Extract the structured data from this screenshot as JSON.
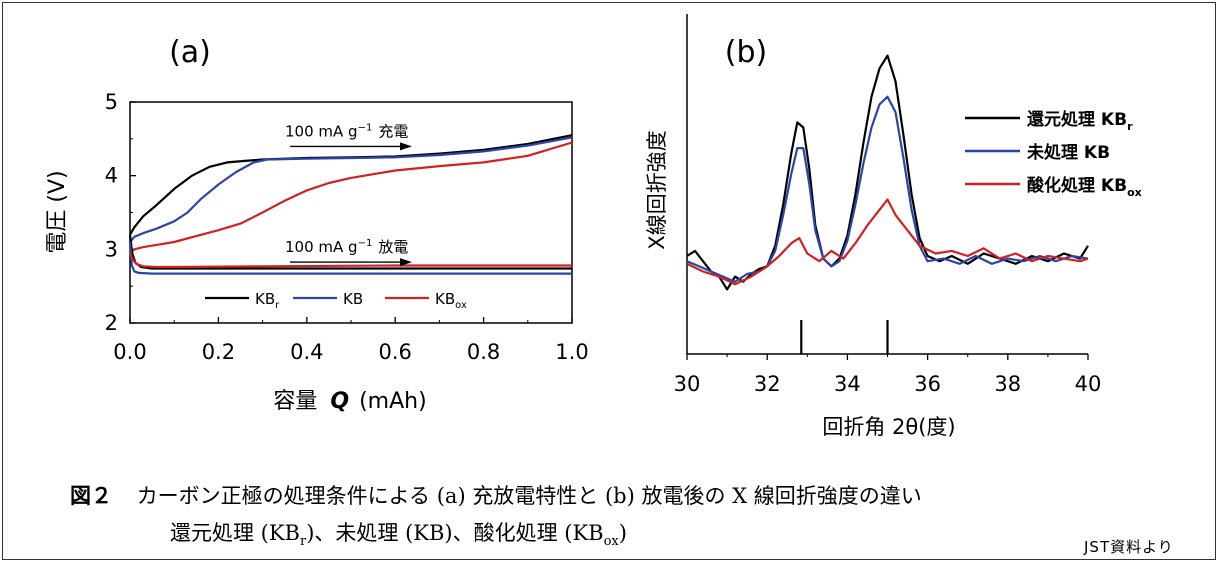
{
  "chart_data": [
    {
      "type": "line",
      "panel_label": "(a)",
      "xlabel": "容量",
      "xlabel_var": "Q",
      "xlabel_unit": "(mAh)",
      "ylabel": "電圧 (V)",
      "xlim": [
        0.0,
        1.0
      ],
      "ylim": [
        2,
        5
      ],
      "xticks": [
        "0.0",
        "0.2",
        "0.4",
        "0.6",
        "0.8",
        "1.0"
      ],
      "yticks": [
        "2",
        "3",
        "4",
        "5"
      ],
      "annotations": [
        {
          "text_prefix": "100 mA g",
          "superscript": "−1",
          "text_suffix": "充電",
          "y": 4.37
        },
        {
          "text_prefix": "100 mA g",
          "superscript": "−1",
          "text_suffix": "放電",
          "y": 2.8
        }
      ],
      "legend": [
        {
          "label": "KB",
          "subscript": "r",
          "color": "#000000"
        },
        {
          "label": "KB",
          "subscript": "",
          "color": "#2a45a8"
        },
        {
          "label": "KB",
          "subscript": "ox",
          "color": "#d42020"
        }
      ],
      "series": [
        {
          "name": "KBr charge",
          "color": "#000000",
          "x": [
            0.0,
            0.01,
            0.03,
            0.06,
            0.1,
            0.14,
            0.18,
            0.22,
            0.26,
            0.3,
            0.4,
            0.5,
            0.6,
            0.7,
            0.8,
            0.9,
            1.0
          ],
          "y": [
            3.2,
            3.3,
            3.45,
            3.6,
            3.82,
            4.0,
            4.12,
            4.18,
            4.2,
            4.22,
            4.24,
            4.25,
            4.26,
            4.3,
            4.35,
            4.43,
            4.55
          ]
        },
        {
          "name": "KB charge",
          "color": "#2a45a8",
          "x": [
            0.0,
            0.01,
            0.03,
            0.06,
            0.1,
            0.13,
            0.16,
            0.2,
            0.24,
            0.28,
            0.31,
            0.4,
            0.5,
            0.6,
            0.7,
            0.8,
            0.9,
            1.0
          ],
          "y": [
            3.1,
            3.17,
            3.22,
            3.28,
            3.38,
            3.5,
            3.68,
            3.88,
            4.05,
            4.18,
            4.22,
            4.23,
            4.24,
            4.25,
            4.28,
            4.33,
            4.41,
            4.52
          ]
        },
        {
          "name": "KBox charge",
          "color": "#d42020",
          "x": [
            0.0,
            0.01,
            0.03,
            0.06,
            0.1,
            0.15,
            0.2,
            0.25,
            0.3,
            0.35,
            0.4,
            0.45,
            0.5,
            0.55,
            0.6,
            0.7,
            0.8,
            0.9,
            1.0
          ],
          "y": [
            2.95,
            3.0,
            3.03,
            3.06,
            3.1,
            3.18,
            3.26,
            3.35,
            3.5,
            3.66,
            3.8,
            3.9,
            3.97,
            4.02,
            4.07,
            4.13,
            4.18,
            4.27,
            4.45
          ]
        },
        {
          "name": "KBr discharge",
          "color": "#000000",
          "x": [
            0.0,
            0.005,
            0.012,
            0.025,
            0.05,
            0.1,
            0.3,
            0.6,
            1.0
          ],
          "y": [
            3.2,
            2.95,
            2.82,
            2.76,
            2.74,
            2.74,
            2.74,
            2.74,
            2.74
          ]
        },
        {
          "name": "KB discharge",
          "color": "#2a45a8",
          "x": [
            0.0,
            0.004,
            0.01,
            0.02,
            0.05,
            0.1,
            0.3,
            0.6,
            1.0
          ],
          "y": [
            3.1,
            2.78,
            2.7,
            2.68,
            2.67,
            2.67,
            2.67,
            2.67,
            2.67
          ]
        },
        {
          "name": "KBox discharge",
          "color": "#d42020",
          "x": [
            0.0,
            0.006,
            0.015,
            0.03,
            0.06,
            0.1,
            0.3,
            0.6,
            1.0
          ],
          "y": [
            2.95,
            2.86,
            2.8,
            2.77,
            2.76,
            2.76,
            2.77,
            2.78,
            2.78
          ]
        }
      ]
    },
    {
      "type": "line",
      "panel_label": "(b)",
      "xlabel": "回折角 2θ(度)",
      "ylabel": "X線回折強度",
      "xlim": [
        30,
        40
      ],
      "ylim": [
        0,
        100
      ],
      "xticks": [
        "30",
        "32",
        "34",
        "36",
        "38",
        "40"
      ],
      "reference_peaks": [
        32.85,
        35.0
      ],
      "legend": [
        {
          "label": "還元処理 KB",
          "subscript": "r",
          "color": "#000000"
        },
        {
          "label": "未処理 KB",
          "subscript": "",
          "color": "#2a45a8"
        },
        {
          "label": "酸化処理 KB",
          "subscript": "ox",
          "color": "#d42020"
        }
      ],
      "series": [
        {
          "name": "還元処理 KBr",
          "color": "#000000",
          "x": [
            30.0,
            30.2,
            30.4,
            30.6,
            30.8,
            31.0,
            31.2,
            31.4,
            31.6,
            31.8,
            32.0,
            32.2,
            32.4,
            32.6,
            32.75,
            32.9,
            33.05,
            33.2,
            33.4,
            33.6,
            33.8,
            34.0,
            34.2,
            34.4,
            34.6,
            34.8,
            35.0,
            35.2,
            35.4,
            35.6,
            35.8,
            36.0,
            36.3,
            36.6,
            37.0,
            37.4,
            37.8,
            38.2,
            38.6,
            39.0,
            39.4,
            39.8,
            40.0
          ],
          "y": [
            28,
            30,
            26,
            22,
            20,
            15,
            20,
            18,
            21,
            23,
            24,
            32,
            48,
            68,
            80,
            78,
            62,
            40,
            27,
            24,
            27,
            36,
            52,
            72,
            90,
            101,
            106,
            96,
            75,
            52,
            35,
            28,
            26,
            28,
            25,
            29,
            27,
            25,
            28,
            26,
            29,
            27,
            32
          ]
        },
        {
          "name": "未処理 KB",
          "color": "#2a45a8",
          "x": [
            30.0,
            30.3,
            30.6,
            30.9,
            31.2,
            31.5,
            31.8,
            32.0,
            32.2,
            32.4,
            32.6,
            32.75,
            32.9,
            33.05,
            33.2,
            33.4,
            33.6,
            33.8,
            34.0,
            34.2,
            34.4,
            34.6,
            34.8,
            35.0,
            35.2,
            35.4,
            35.6,
            35.8,
            36.0,
            36.4,
            36.8,
            37.2,
            37.6,
            38.0,
            38.4,
            38.8,
            39.2,
            39.6,
            40.0
          ],
          "y": [
            26,
            24,
            22,
            20,
            18,
            21,
            22,
            24,
            30,
            44,
            60,
            70,
            70,
            56,
            38,
            27,
            24,
            26,
            34,
            48,
            64,
            78,
            87,
            90,
            84,
            66,
            46,
            32,
            26,
            27,
            25,
            28,
            25,
            27,
            26,
            28,
            26,
            28,
            27
          ]
        },
        {
          "name": "酸化処理 KBox",
          "color": "#d42020",
          "x": [
            30.0,
            30.4,
            30.8,
            31.2,
            31.6,
            32.0,
            32.3,
            32.6,
            32.8,
            33.0,
            33.3,
            33.6,
            33.9,
            34.2,
            34.5,
            34.8,
            35.0,
            35.2,
            35.5,
            35.8,
            36.2,
            36.6,
            37.0,
            37.4,
            37.8,
            38.2,
            38.6,
            39.0,
            39.4,
            39.8,
            40.0
          ],
          "y": [
            25,
            22,
            20,
            17,
            20,
            24,
            28,
            33,
            35,
            29,
            26,
            30,
            27,
            33,
            40,
            46,
            50,
            44,
            38,
            32,
            29,
            30,
            28,
            31,
            27,
            29,
            26,
            28,
            27,
            26,
            27
          ]
        }
      ]
    }
  ],
  "caption": {
    "fig_label": "図２",
    "line1_rest": "カーボン正極の処理条件による (a) 充放電特性と (b) 放電後の X 線回折強度の違い",
    "line2_a": "還元処理 (KB",
    "line2_a_sub": "r",
    "line2_b": ")、未処理 (KB)、酸化処理 (KB",
    "line2_b_sub": "ox",
    "line2_c": ")"
  },
  "source": "JST資料より"
}
